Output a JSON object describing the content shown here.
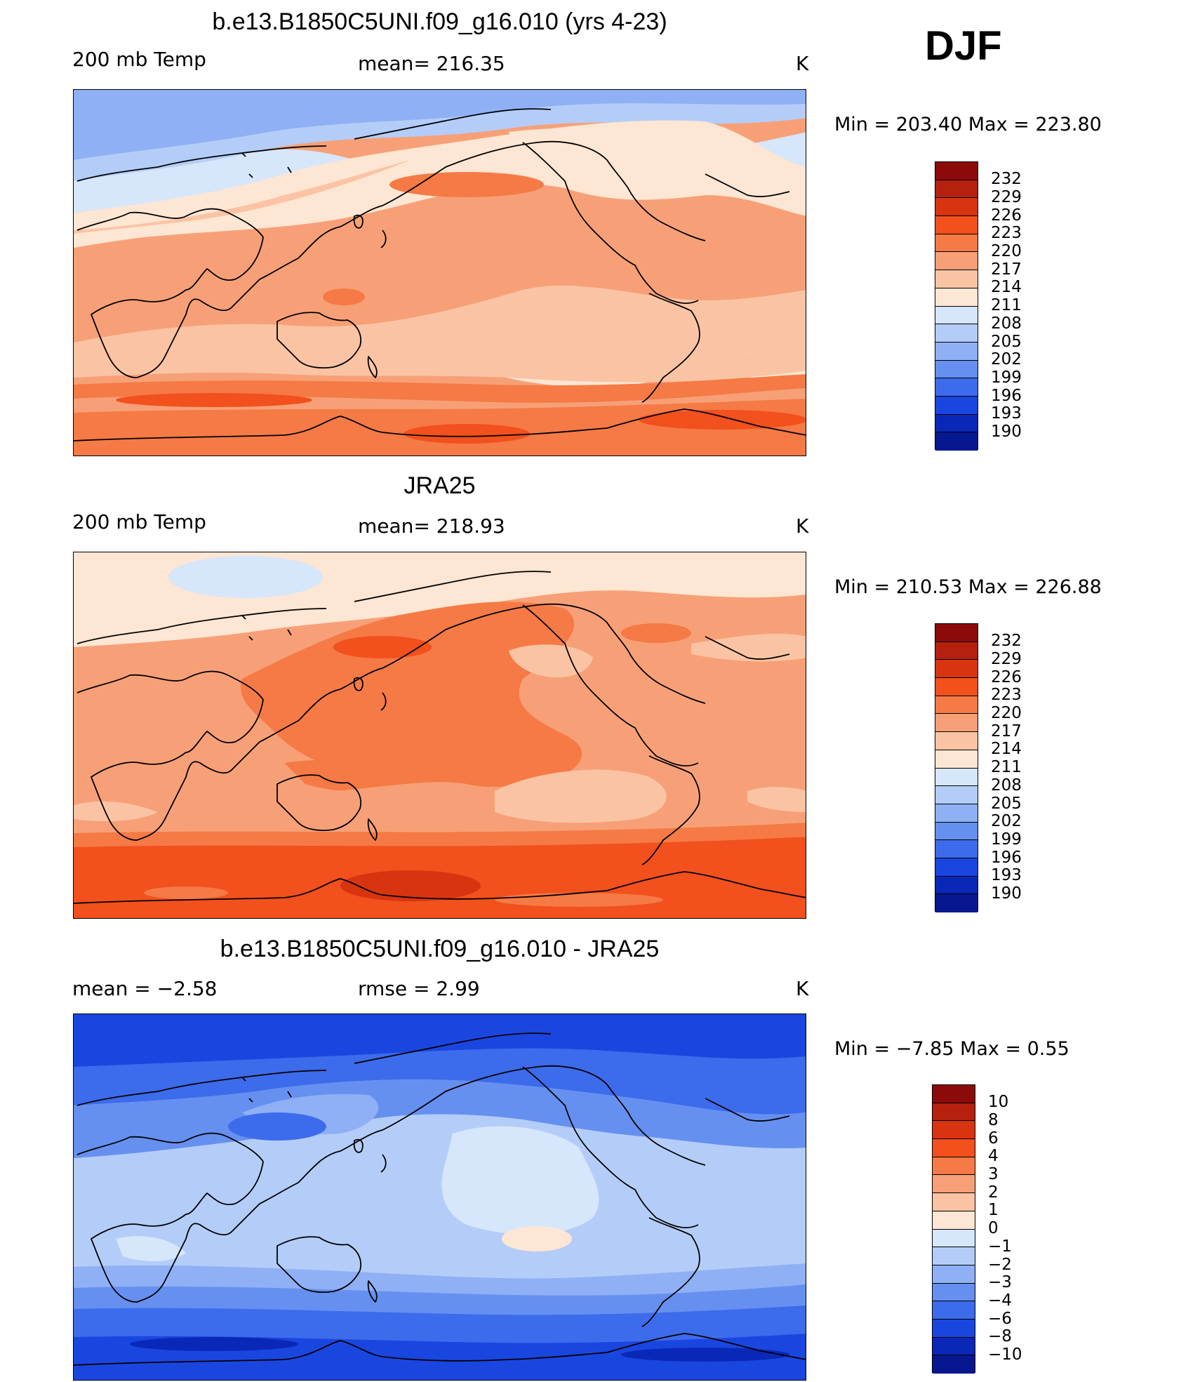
{
  "season": "DJF",
  "panels": [
    {
      "title": "b.e13.B1850C5UNI.f09_g16.010 (yrs 4-23)",
      "left_label": "200 mb Temp",
      "center_label": "mean=  216.35",
      "right_label": "K",
      "minmax": "Min  =  203.40  Max  =  223.80",
      "colorbar_labels": [
        "232",
        "229",
        "226",
        "223",
        "220",
        "217",
        "214",
        "211",
        "208",
        "205",
        "202",
        "199",
        "196",
        "193",
        "190"
      ]
    },
    {
      "title": "JRA25",
      "left_label": "200 mb Temp",
      "center_label": "mean=  218.93",
      "right_label": "K",
      "minmax": "Min  =  210.53  Max  =  226.88",
      "colorbar_labels": [
        "232",
        "229",
        "226",
        "223",
        "220",
        "217",
        "214",
        "211",
        "208",
        "205",
        "202",
        "199",
        "196",
        "193",
        "190"
      ]
    },
    {
      "title": "b.e13.B1850C5UNI.f09_g16.010 - JRA25",
      "left_label": "mean  =    −2.58",
      "center_label": "rmse  =     2.99",
      "right_label": "K",
      "minmax": "Min  =    −7.85  Max  =      0.55",
      "colorbar_labels": [
        "10",
        "8",
        "6",
        "4",
        "3",
        "2",
        "1",
        "0",
        "−1",
        "−2",
        "−3",
        "−4",
        "−6",
        "−8",
        "−10"
      ]
    }
  ],
  "colors": {
    "palette": [
      "#8c0a0a",
      "#b5200f",
      "#d93410",
      "#f2501d",
      "#f57a45",
      "#f7a077",
      "#fac4a4",
      "#fde6d3",
      "#d6e6fb",
      "#b4cdf8",
      "#8fb0f5",
      "#6690f0",
      "#3c6cec",
      "#1a46e0",
      "#0a28b8",
      "#061790"
    ]
  }
}
